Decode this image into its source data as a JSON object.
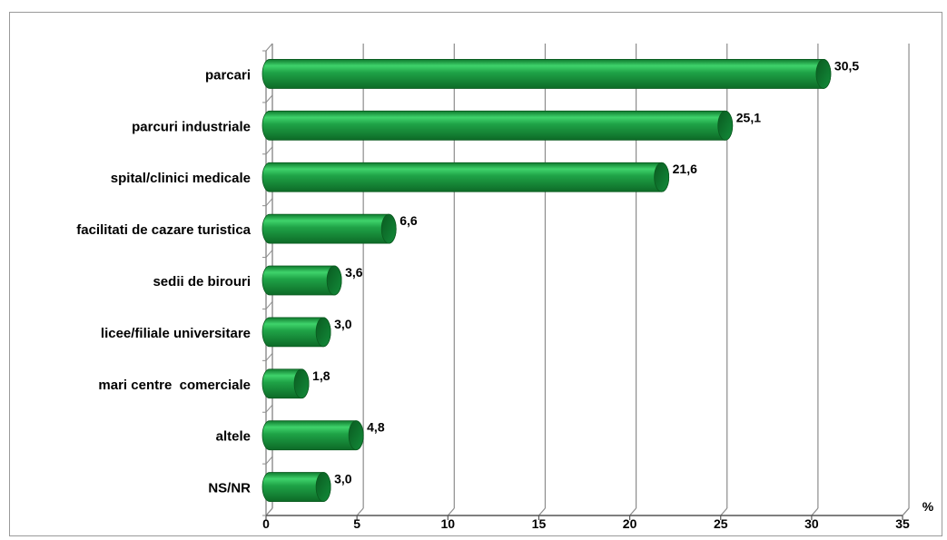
{
  "chart_data": {
    "type": "bar",
    "orientation": "horizontal",
    "title": "",
    "xlabel": "",
    "ylabel": "",
    "unit_label": "%",
    "xlim": [
      0,
      35
    ],
    "xticks": [
      0,
      5,
      10,
      15,
      20,
      25,
      30,
      35
    ],
    "grid": true,
    "legend": "none",
    "bar_color": "#1fa347",
    "categories": [
      "parcari",
      "parcuri industriale",
      "spital/clinici medicale",
      "facilitati de cazare turistica",
      "sedii de birouri",
      "licee/filiale universitare",
      "mari centre  comerciale",
      "altele",
      "NS/NR"
    ],
    "values": [
      30.5,
      25.1,
      21.6,
      6.6,
      3.6,
      3.0,
      1.8,
      4.8,
      3.0
    ],
    "value_labels": [
      "30,5",
      "25,1",
      "21,6",
      "6,6",
      "3,6",
      "3,0",
      "1,8",
      "4,8",
      "3,0"
    ]
  }
}
